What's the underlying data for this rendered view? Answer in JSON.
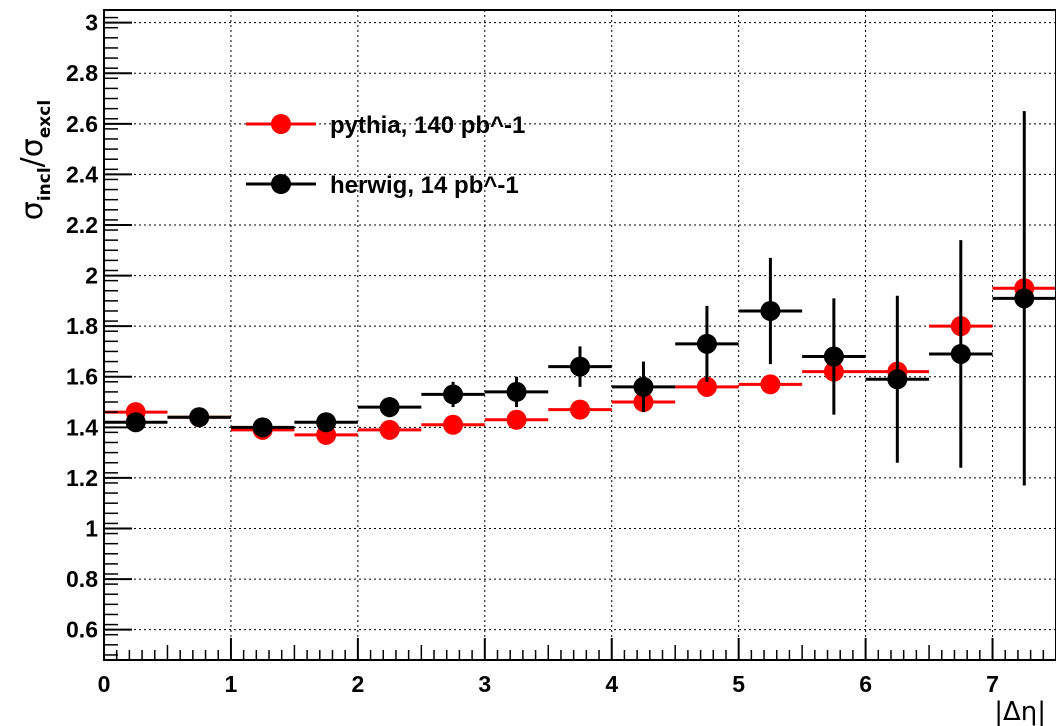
{
  "chart_data": {
    "type": "scatter",
    "xlabel": "|Δη|",
    "ylabel": {
      "main": "σ",
      "sub1": "incl",
      "sep": "/",
      "main2": "σ",
      "sub2": "excl"
    },
    "xlim": [
      0,
      7.5
    ],
    "ylim": [
      0.48,
      3.05
    ],
    "grid": true,
    "legend_position": "top-left",
    "x_ticks": [
      0,
      1,
      2,
      3,
      4,
      5,
      6,
      7
    ],
    "y_ticks": [
      0.6,
      0.8,
      1,
      1.2,
      1.4,
      1.6,
      1.8,
      2,
      2.2,
      2.4,
      2.6,
      2.8,
      3
    ],
    "x_tick_labels": [
      "0",
      "1",
      "2",
      "3",
      "4",
      "5",
      "6",
      "7"
    ],
    "y_tick_labels": [
      "0.6",
      "0.8",
      "1",
      "1.2",
      "1.4",
      "1.6",
      "1.8",
      "2",
      "2.2",
      "2.4",
      "2.6",
      "2.8",
      "3"
    ],
    "bin_half_width": 0.25,
    "series": [
      {
        "name": "pythia, 140 pb^-1",
        "color": "#ff0000",
        "x": [
          0.25,
          0.75,
          1.25,
          1.75,
          2.25,
          2.75,
          3.25,
          3.75,
          4.25,
          4.75,
          5.25,
          5.75,
          6.25,
          6.75,
          7.25
        ],
        "y": [
          1.46,
          1.44,
          1.39,
          1.37,
          1.39,
          1.41,
          1.43,
          1.47,
          1.5,
          1.56,
          1.57,
          1.62,
          1.62,
          1.8,
          1.95
        ],
        "yerr": [
          0.01,
          0.01,
          0.01,
          0.01,
          0.01,
          0.01,
          0.01,
          0.01,
          0.01,
          0.01,
          0.01,
          0.01,
          0.01,
          0.01,
          0.01
        ]
      },
      {
        "name": "herwig, 14 pb^-1",
        "color": "#000000",
        "x": [
          0.25,
          0.75,
          1.25,
          1.75,
          2.25,
          2.75,
          3.25,
          3.75,
          4.25,
          4.75,
          5.25,
          5.75,
          6.25,
          6.75,
          7.25
        ],
        "y": [
          1.42,
          1.44,
          1.4,
          1.42,
          1.48,
          1.53,
          1.54,
          1.64,
          1.56,
          1.73,
          1.86,
          1.68,
          1.59,
          1.69,
          1.91
        ],
        "yerr": [
          0.02,
          0.02,
          0.03,
          0.03,
          0.04,
          0.05,
          0.06,
          0.08,
          0.1,
          0.15,
          0.21,
          0.23,
          0.33,
          0.45,
          0.74
        ]
      }
    ]
  }
}
